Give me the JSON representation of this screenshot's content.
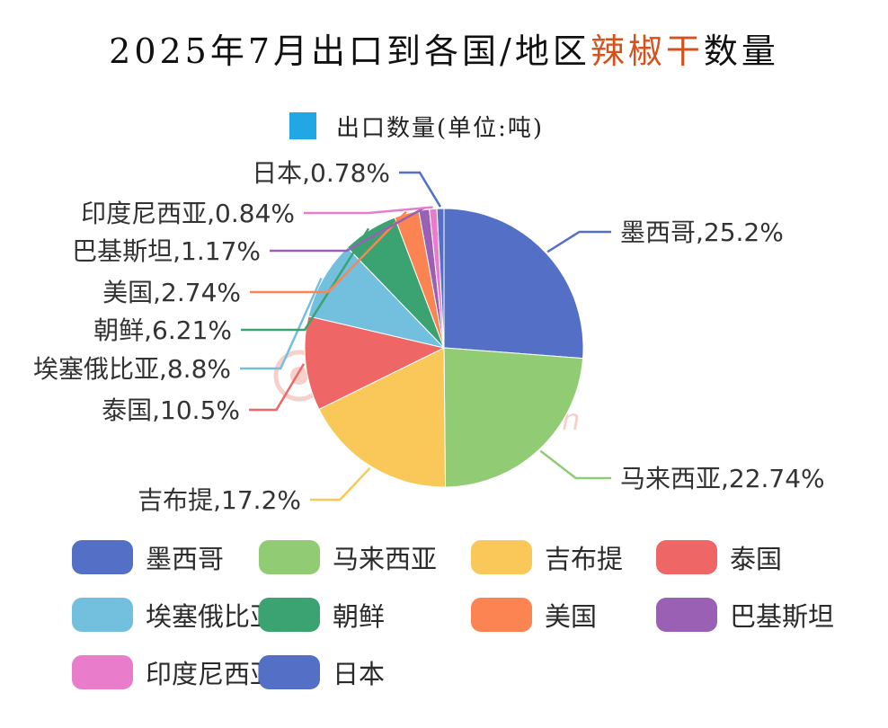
{
  "title": {
    "prefix": "2025年7月出口到各国/地区",
    "highlight": "辣椒干",
    "suffix": "数量"
  },
  "watermark": {
    "brand": "中椒网",
    "url": "www.e658.cn"
  },
  "chart_data": {
    "type": "pie",
    "series_name": "出口数量(单位:吨)",
    "series_color": "#21a7e3",
    "slices": [
      {
        "label": "墨西哥",
        "value": 25.2,
        "display": "25.2%",
        "color": "#5470c6"
      },
      {
        "label": "马来西亚",
        "value": 22.74,
        "display": "22.74%",
        "color": "#91cc75"
      },
      {
        "label": "吉布提",
        "value": 17.2,
        "display": "17.2%",
        "color": "#fac858"
      },
      {
        "label": "泰国",
        "value": 10.5,
        "display": "10.5%",
        "color": "#ee6666"
      },
      {
        "label": "埃塞俄比亚",
        "value": 8.8,
        "display": "8.8%",
        "color": "#73c0de"
      },
      {
        "label": "朝鲜",
        "value": 6.21,
        "display": "6.21%",
        "color": "#3ba272"
      },
      {
        "label": "美国",
        "value": 2.74,
        "display": "2.74%",
        "color": "#fc8452"
      },
      {
        "label": "巴基斯坦",
        "value": 1.17,
        "display": "1.17%",
        "color": "#9a60b4"
      },
      {
        "label": "印度尼西亚",
        "value": 0.84,
        "display": "0.84%",
        "color": "#ea7ccc"
      },
      {
        "label": "日本",
        "value": 0.78,
        "display": "0.78%",
        "color": "#5470c6"
      }
    ]
  }
}
